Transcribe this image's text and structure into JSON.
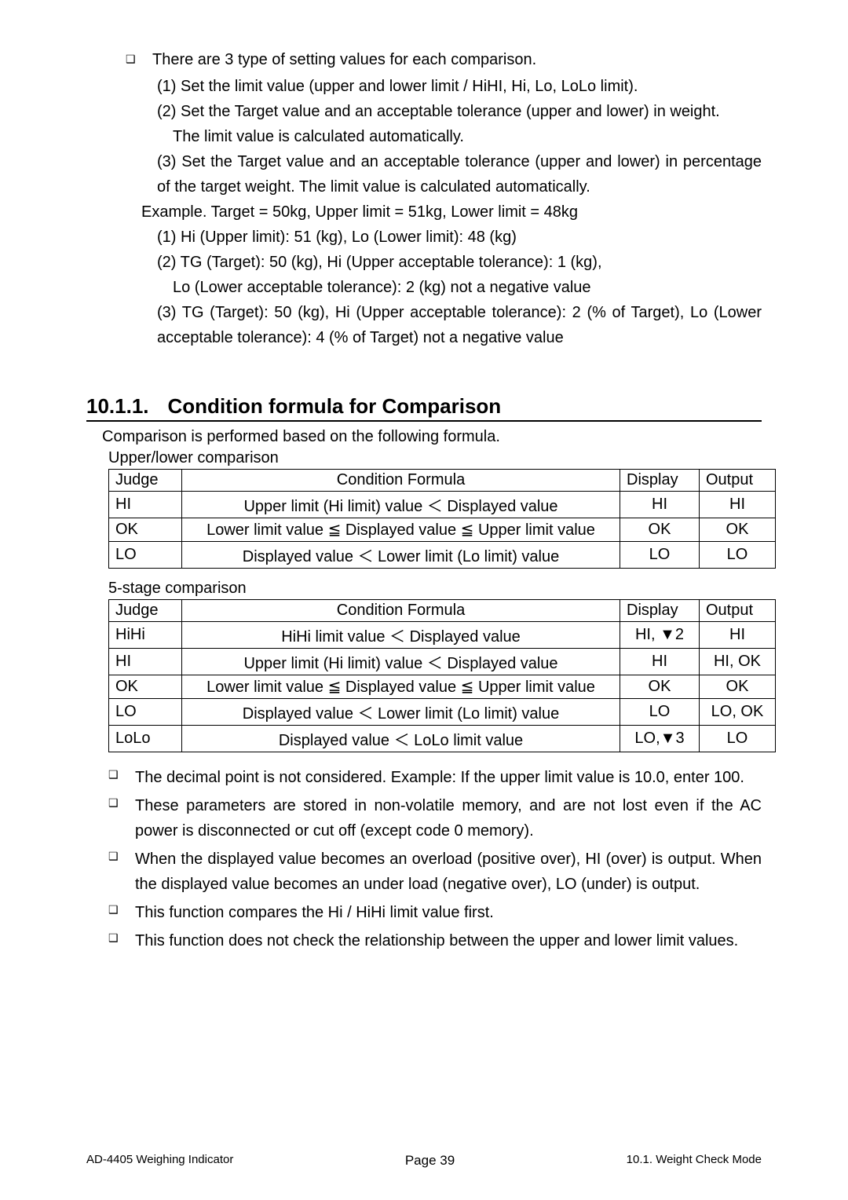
{
  "top": {
    "bullet": "❑",
    "lead": "There are 3 type of setting values for each comparison.",
    "items": [
      {
        "indent": "sub-indent",
        "text": "(1) Set the limit value (upper and lower limit / HiHI, Hi, Lo, LoLo limit)."
      },
      {
        "indent": "sub-indent",
        "text": "(2) Set the Target value and an acceptable tolerance (upper and lower) in weight."
      },
      {
        "indent": "sub-indent2",
        "text": "The limit value is calculated automatically."
      },
      {
        "indent": "sub-indent",
        "text": "(3) Set the Target value and an acceptable tolerance (upper and lower) in percentage of the target weight. The limit value is calculated automatically.",
        "justify": true
      },
      {
        "indent": "sub-indent3",
        "text": "Example.   Target = 50kg,   Upper limit = 51kg,   Lower limit = 48kg"
      },
      {
        "indent": "sub-indent",
        "text": "(1) Hi (Upper limit): 51 (kg), Lo (Lower limit): 48 (kg)"
      },
      {
        "indent": "sub-indent",
        "text": "(2) TG (Target):   50 (kg), Hi (Upper acceptable tolerance): 1 (kg),"
      },
      {
        "indent": "sub-indent2",
        "text": "Lo (Lower acceptable tolerance): 2 (kg) not a negative value"
      },
      {
        "indent": "sub-indent",
        "text": "(3) TG (Target): 50 (kg), Hi (Upper acceptable tolerance): 2 (% of Target), Lo (Lower acceptable tolerance): 4 (% of Target) not a negative value",
        "justify": true
      }
    ]
  },
  "section": {
    "number": "10.1.1.",
    "title": "Condition formula for Comparison"
  },
  "intro": "Comparison is performed based on the following formula.",
  "table1_label": "Upper/lower comparison",
  "table_headers": [
    "Judge",
    "Condition Formula",
    "Display",
    "Output"
  ],
  "table1_rows": [
    {
      "judge": "HI",
      "formula": "Upper limit (Hi limit) value ＜ Displayed value",
      "display": "HI",
      "output": "HI"
    },
    {
      "judge": "OK",
      "formula": "Lower limit value ≦ Displayed value ≦ Upper limit value",
      "display": "OK",
      "output": "OK"
    },
    {
      "judge": "LO",
      "formula": "Displayed value ＜ Lower limit (Lo limit) value",
      "display": "LO",
      "output": "LO"
    }
  ],
  "table2_label": "5-stage comparison",
  "table2_rows": [
    {
      "judge": "HiHi",
      "formula": "HiHi limit value ＜ Displayed value",
      "display": "HI, ▼2",
      "output": "HI"
    },
    {
      "judge": "HI",
      "formula": "Upper limit (Hi limit) value ＜ Displayed value",
      "display": "HI",
      "output": "HI, OK"
    },
    {
      "judge": "OK",
      "formula": "Lower limit value ≦ Displayed value ≦ Upper limit value",
      "display": "OK",
      "output": "OK"
    },
    {
      "judge": "LO",
      "formula": "Displayed value ＜ Lower limit (Lo limit) value",
      "display": "LO",
      "output": "LO, OK"
    },
    {
      "judge": "LoLo",
      "formula": "Displayed value ＜ LoLo limit value",
      "display": "LO,▼3",
      "output": "LO"
    }
  ],
  "notes": [
    "The decimal point is not considered. Example: If the upper limit value is 10.0, enter 100.",
    "These parameters are stored in non-volatile memory, and are not lost even if the AC power is disconnected or cut off (except code 0 memory).",
    "When the displayed value becomes an overload (positive over), HI (over) is output. When the displayed value becomes an under load (negative over), LO (under) is output.",
    "This function compares the Hi / HiHi limit value first.",
    "This function does not check the relationship between the upper and lower limit values."
  ],
  "footer": {
    "left": "AD-4405 Weighing Indicator",
    "center_label": "Page",
    "center_num": "39",
    "right": "10.1. Weight Check Mode"
  }
}
